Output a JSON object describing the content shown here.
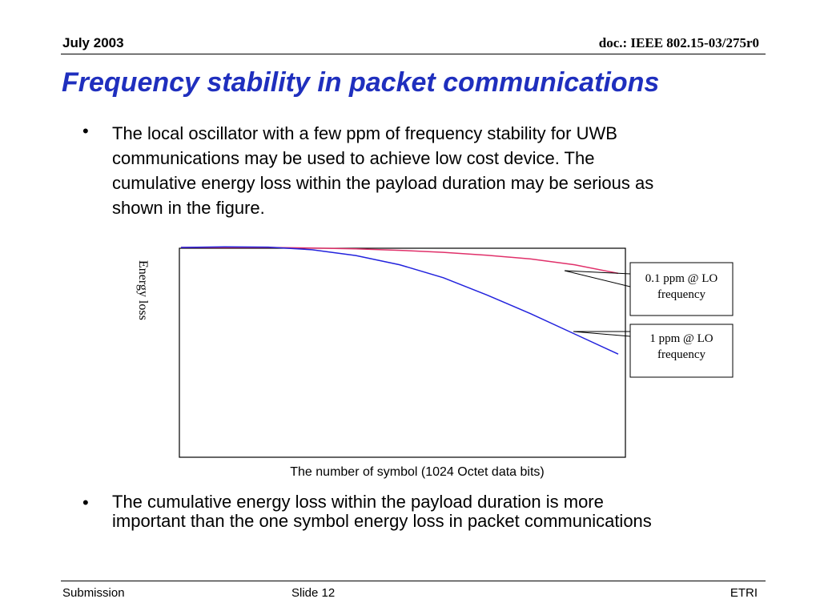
{
  "header": {
    "date": "July 2003",
    "doc": "doc.: IEEE 802.15-03/275r0"
  },
  "title": "Frequency stability in packet communications",
  "bullets": [
    {
      "symbol": "•",
      "lines": [
        "The local oscillator with a few ppm of frequency stability for UWB",
        "communications may be used to achieve low cost device. The",
        "cumulative energy loss within the payload duration may be serious as",
        "shown in the figure."
      ]
    },
    {
      "symbol": "•",
      "lines": [
        "The cumulative energy loss within the payload duration is more",
        "important  than the one symbol energy loss in packet communications"
      ]
    }
  ],
  "chart_data": {
    "type": "line",
    "ylabel": "Energy loss",
    "xlabel": "The number of symbol (1024 Octet data bits)",
    "grid": false,
    "colors": {
      "series_0_1ppm": "#e0306a",
      "series_1ppm": "#2222dd"
    },
    "series": [
      {
        "name": "0.1 ppm @ LO frequency",
        "x": [
          0,
          0.1,
          0.2,
          0.3,
          0.4,
          0.5,
          0.6,
          0.7,
          0.8,
          0.9,
          1.0
        ],
        "y": [
          0.0,
          0.0,
          0.0,
          -0.2,
          -0.5,
          -1.0,
          -1.7,
          -2.7,
          -4.0,
          -6.0,
          -9.0
        ]
      },
      {
        "name": "1 ppm @ LO frequency",
        "x": [
          0,
          0.1,
          0.2,
          0.3,
          0.4,
          0.5,
          0.6,
          0.7,
          0.8,
          0.9,
          1.0
        ],
        "y": [
          0.0,
          0.2,
          0.1,
          -0.8,
          -2.8,
          -6.0,
          -10.5,
          -16.5,
          -23.0,
          -30.0,
          -37.0
        ]
      }
    ],
    "annotations": [
      {
        "line1": "0.1 ppm @ LO",
        "line2": "frequency"
      },
      {
        "line1": "1 ppm @ LO",
        "line2": "frequency"
      }
    ]
  },
  "footer": {
    "left": "Submission",
    "center": "Slide 12",
    "right": "ETRI"
  }
}
